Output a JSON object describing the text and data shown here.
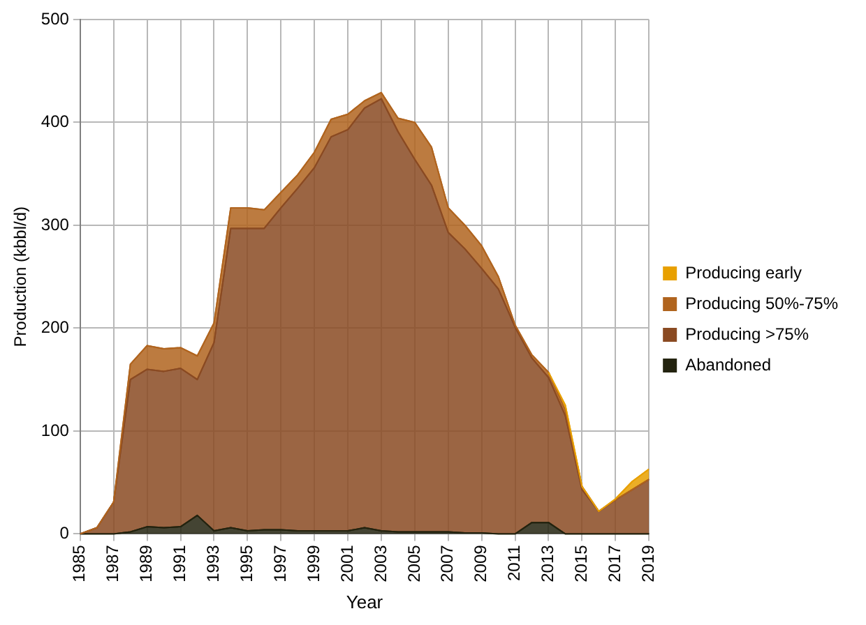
{
  "chart_data": {
    "type": "area",
    "stacked": true,
    "xlabel": "Year",
    "ylabel": "Production (kbbl/d)",
    "x": [
      1985,
      1986,
      1987,
      1988,
      1989,
      1990,
      1991,
      1992,
      1993,
      1994,
      1995,
      1996,
      1997,
      1998,
      1999,
      2000,
      2001,
      2002,
      2003,
      2004,
      2005,
      2006,
      2007,
      2008,
      2009,
      2010,
      2011,
      2012,
      2013,
      2014,
      2015,
      2016,
      2017,
      2018,
      2019
    ],
    "xlim": [
      1985,
      2019
    ],
    "xticks": [
      1985,
      1987,
      1989,
      1991,
      1993,
      1995,
      1997,
      1999,
      2001,
      2003,
      2005,
      2007,
      2009,
      2011,
      2013,
      2015,
      2017,
      2019
    ],
    "ylim": [
      0,
      500
    ],
    "yticks": [
      0,
      100,
      200,
      300,
      400,
      500
    ],
    "grid": true,
    "legend": "right",
    "series": [
      {
        "name": "Abandoned",
        "color": "#23230f",
        "values": [
          0,
          0,
          0,
          2,
          7,
          6,
          7,
          18,
          3,
          6,
          3,
          4,
          4,
          3,
          3,
          3,
          3,
          6,
          3,
          2,
          2,
          2,
          2,
          1,
          1,
          0,
          0,
          11,
          11,
          0,
          0,
          0,
          0,
          0,
          0
        ]
      },
      {
        "name": "Producing >75%",
        "color": "#8a4a22",
        "values": [
          0,
          6,
          31,
          148,
          153,
          152,
          154,
          132,
          183,
          291,
          294,
          293,
          313,
          333,
          353,
          383,
          390,
          408,
          420,
          389,
          362,
          337,
          291,
          276,
          257,
          238,
          201,
          160,
          141,
          115,
          43,
          22,
          33,
          43,
          53
        ]
      },
      {
        "name": "Producing 50%-75%",
        "color": "#b0641e",
        "values": [
          0,
          0,
          0,
          15,
          23,
          22,
          20,
          23,
          19,
          20,
          20,
          18,
          15,
          13,
          15,
          17,
          15,
          7,
          6,
          13,
          36,
          37,
          24,
          23,
          22,
          12,
          2,
          3,
          5,
          5,
          3,
          0,
          0,
          0,
          0
        ]
      },
      {
        "name": "Producing early",
        "color": "#e8a000",
        "values": [
          null,
          null,
          null,
          null,
          null,
          null,
          null,
          null,
          null,
          null,
          null,
          null,
          null,
          null,
          null,
          null,
          null,
          null,
          null,
          null,
          null,
          null,
          null,
          null,
          null,
          null,
          null,
          null,
          0,
          5,
          0,
          0,
          1,
          8,
          10
        ]
      }
    ]
  }
}
